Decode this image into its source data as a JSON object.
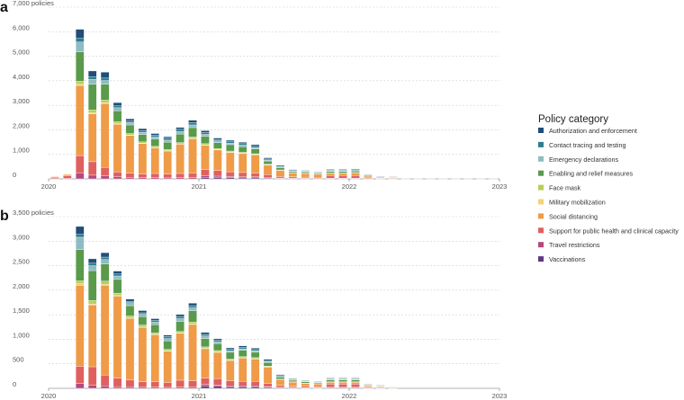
{
  "legend": {
    "title": "Policy category",
    "items": [
      {
        "label": "Authorization and enforcement",
        "color": "#1f4e79"
      },
      {
        "label": "Contact tracing and testing",
        "color": "#2c7f8f"
      },
      {
        "label": "Emergency declarations",
        "color": "#8fbcc4"
      },
      {
        "label": "Enabling and relief measures",
        "color": "#5a9a4b"
      },
      {
        "label": "Face mask",
        "color": "#b7cf5a"
      },
      {
        "label": "Military mobilization",
        "color": "#f2d27a"
      },
      {
        "label": "Social distancing",
        "color": "#ef9b47"
      },
      {
        "label": "Support for public health and clinical capacity",
        "color": "#e06060"
      },
      {
        "label": "Travel restrictions",
        "color": "#b5487f"
      },
      {
        "label": "Vaccinations",
        "color": "#5b3a80"
      }
    ]
  },
  "chart_data": [
    {
      "type": "bar",
      "panel": "a",
      "stacked": true,
      "ylim": [
        0,
        7000
      ],
      "yticks": [
        0,
        1000,
        2000,
        3000,
        4000,
        5000,
        6000,
        7000
      ],
      "ytick_labels": [
        "0",
        "1,000",
        "2,000",
        "3,000",
        "4,000",
        "5,000",
        "6,000",
        "7,000 policies"
      ],
      "x_start_month": "2020-01",
      "x_end_month": "2023-01",
      "x_tick_labels": [
        {
          "month": "2020-01",
          "label": "2020"
        },
        {
          "month": "2021-01",
          "label": "2021"
        },
        {
          "month": "2022-01",
          "label": "2022"
        },
        {
          "month": "2023-01",
          "label": "2023"
        }
      ],
      "months": [
        "2020-01",
        "2020-02",
        "2020-03",
        "2020-04",
        "2020-05",
        "2020-06",
        "2020-07",
        "2020-08",
        "2020-09",
        "2020-10",
        "2020-11",
        "2020-12",
        "2021-01",
        "2021-02",
        "2021-03",
        "2021-04",
        "2021-05",
        "2021-06",
        "2021-07",
        "2021-08",
        "2021-09",
        "2021-10",
        "2021-11",
        "2021-12",
        "2022-01",
        "2022-02",
        "2022-03",
        "2022-04",
        "2022-05",
        "2022-06",
        "2022-07",
        "2022-08",
        "2022-09",
        "2022-10",
        "2022-11",
        "2022-12"
      ],
      "series": [
        {
          "name": "Vaccinations",
          "values": [
            0,
            0,
            0,
            0,
            0,
            0,
            0,
            0,
            0,
            0,
            0,
            0,
            60,
            60,
            50,
            40,
            40,
            30,
            20,
            20,
            15,
            10,
            10,
            10,
            10,
            5,
            5,
            5,
            0,
            0,
            0,
            0,
            0,
            0,
            0,
            0
          ]
        },
        {
          "name": "Travel restrictions",
          "values": [
            10,
            20,
            250,
            150,
            120,
            80,
            60,
            50,
            50,
            40,
            50,
            50,
            70,
            50,
            40,
            40,
            40,
            25,
            15,
            15,
            10,
            10,
            20,
            20,
            20,
            5,
            5,
            5,
            0,
            0,
            0,
            0,
            0,
            0,
            0,
            0
          ]
        },
        {
          "name": "Support for public health and clinical capacity",
          "values": [
            50,
            100,
            700,
            550,
            350,
            200,
            170,
            150,
            170,
            150,
            170,
            190,
            250,
            230,
            200,
            180,
            160,
            120,
            60,
            50,
            45,
            40,
            110,
            110,
            110,
            30,
            20,
            10,
            5,
            5,
            5,
            5,
            5,
            5,
            5,
            5
          ]
        },
        {
          "name": "Social distancing",
          "values": [
            30,
            60,
            2850,
            1950,
            2600,
            1950,
            1550,
            1250,
            1050,
            950,
            1200,
            1400,
            1000,
            850,
            800,
            780,
            750,
            400,
            250,
            160,
            150,
            130,
            90,
            90,
            110,
            80,
            40,
            40,
            0,
            0,
            0,
            0,
            0,
            0,
            0,
            0
          ]
        },
        {
          "name": "Military mobilization",
          "values": [
            0,
            0,
            60,
            40,
            30,
            20,
            10,
            10,
            10,
            10,
            10,
            10,
            5,
            5,
            5,
            5,
            5,
            5,
            0,
            0,
            0,
            0,
            0,
            0,
            0,
            0,
            0,
            0,
            0,
            0,
            0,
            0,
            0,
            0,
            0,
            0
          ]
        },
        {
          "name": "Face mask",
          "values": [
            0,
            0,
            120,
            120,
            110,
            80,
            60,
            50,
            50,
            50,
            50,
            60,
            50,
            40,
            40,
            40,
            30,
            20,
            20,
            10,
            10,
            10,
            10,
            10,
            10,
            5,
            5,
            5,
            0,
            0,
            0,
            0,
            0,
            0,
            0,
            0
          ]
        },
        {
          "name": "Enabling and relief measures",
          "values": [
            0,
            0,
            1200,
            1050,
            650,
            450,
            350,
            300,
            300,
            300,
            350,
            380,
            300,
            240,
            260,
            230,
            200,
            130,
            90,
            50,
            50,
            40,
            60,
            60,
            60,
            30,
            20,
            10,
            0,
            0,
            0,
            0,
            0,
            0,
            0,
            0
          ]
        },
        {
          "name": "Emergency declarations",
          "values": [
            0,
            0,
            400,
            200,
            150,
            120,
            100,
            90,
            80,
            80,
            100,
            110,
            80,
            70,
            60,
            60,
            50,
            40,
            30,
            20,
            20,
            15,
            30,
            30,
            30,
            15,
            5,
            5,
            0,
            0,
            0,
            0,
            0,
            0,
            0,
            0
          ]
        },
        {
          "name": "Contact tracing and testing",
          "values": [
            0,
            0,
            150,
            100,
            100,
            80,
            60,
            60,
            70,
            80,
            90,
            90,
            70,
            60,
            60,
            60,
            50,
            40,
            30,
            20,
            20,
            15,
            25,
            25,
            25,
            10,
            5,
            5,
            0,
            0,
            0,
            0,
            0,
            0,
            0,
            0
          ]
        },
        {
          "name": "Authorization and enforcement",
          "values": [
            0,
            0,
            370,
            240,
            240,
            130,
            90,
            90,
            70,
            60,
            80,
            100,
            80,
            60,
            60,
            60,
            70,
            50,
            40,
            30,
            25,
            20,
            30,
            30,
            30,
            10,
            5,
            5,
            0,
            0,
            0,
            0,
            0,
            0,
            0,
            0
          ]
        }
      ]
    },
    {
      "type": "bar",
      "panel": "b",
      "stacked": true,
      "ylim": [
        0,
        3500
      ],
      "yticks": [
        0,
        500,
        1000,
        1500,
        2000,
        2500,
        3000,
        3500
      ],
      "ytick_labels": [
        "0",
        "500",
        "1,000",
        "1,500",
        "2,000",
        "2,500",
        "3,000",
        "3,500 policies"
      ],
      "x_start_month": "2020-01",
      "x_end_month": "2023-01",
      "x_tick_labels": [
        {
          "month": "2020-01",
          "label": "2020"
        },
        {
          "month": "2021-01",
          "label": "2021"
        },
        {
          "month": "2022-01",
          "label": "2022"
        },
        {
          "month": "2023-01",
          "label": "2023"
        }
      ],
      "months": [
        "2020-01",
        "2020-02",
        "2020-03",
        "2020-04",
        "2020-05",
        "2020-06",
        "2020-07",
        "2020-08",
        "2020-09",
        "2020-10",
        "2020-11",
        "2020-12",
        "2021-01",
        "2021-02",
        "2021-03",
        "2021-04",
        "2021-05",
        "2021-06",
        "2021-07",
        "2021-08",
        "2021-09",
        "2021-10",
        "2021-11",
        "2021-12",
        "2022-01",
        "2022-02",
        "2022-03",
        "2022-04",
        "2022-05",
        "2022-06",
        "2022-07",
        "2022-08",
        "2022-09",
        "2022-10",
        "2022-11",
        "2022-12"
      ],
      "series": [
        {
          "name": "Vaccinations",
          "values": [
            0,
            0,
            0,
            0,
            0,
            0,
            0,
            0,
            0,
            0,
            0,
            0,
            40,
            40,
            30,
            30,
            30,
            20,
            15,
            10,
            10,
            10,
            10,
            10,
            10,
            5,
            5,
            0,
            0,
            0,
            0,
            0,
            0,
            0,
            0,
            0
          ]
        },
        {
          "name": "Travel restrictions",
          "values": [
            0,
            0,
            100,
            60,
            50,
            30,
            30,
            25,
            25,
            20,
            25,
            25,
            40,
            25,
            20,
            20,
            20,
            15,
            10,
            10,
            5,
            5,
            15,
            15,
            15,
            5,
            5,
            0,
            0,
            0,
            0,
            0,
            0,
            0,
            0,
            0
          ]
        },
        {
          "name": "Support for public health and clinical capacity",
          "values": [
            0,
            0,
            350,
            380,
            220,
            180,
            140,
            110,
            110,
            100,
            140,
            130,
            130,
            130,
            100,
            90,
            90,
            60,
            35,
            25,
            25,
            20,
            60,
            60,
            60,
            15,
            10,
            5,
            0,
            0,
            0,
            0,
            0,
            0,
            0,
            0
          ]
        },
        {
          "name": "Social distancing",
          "values": [
            0,
            0,
            1650,
            1260,
            1830,
            1670,
            1260,
            1110,
            960,
            640,
            960,
            1150,
            600,
            540,
            420,
            480,
            460,
            340,
            120,
            80,
            60,
            55,
            40,
            40,
            40,
            30,
            20,
            15,
            0,
            0,
            0,
            0,
            0,
            0,
            0,
            0
          ]
        },
        {
          "name": "Military mobilization",
          "values": [
            0,
            0,
            30,
            20,
            15,
            10,
            5,
            5,
            5,
            5,
            5,
            5,
            5,
            5,
            5,
            5,
            5,
            5,
            0,
            0,
            0,
            0,
            0,
            0,
            0,
            0,
            0,
            0,
            0,
            0,
            0,
            0,
            0,
            0,
            0,
            0
          ]
        },
        {
          "name": "Face mask",
          "values": [
            0,
            0,
            60,
            70,
            70,
            50,
            40,
            40,
            30,
            30,
            30,
            40,
            30,
            30,
            20,
            20,
            20,
            15,
            10,
            10,
            5,
            5,
            10,
            10,
            10,
            5,
            5,
            0,
            0,
            0,
            0,
            0,
            0,
            0,
            0,
            0
          ]
        },
        {
          "name": "Enabling and relief measures",
          "values": [
            0,
            0,
            640,
            610,
            350,
            280,
            210,
            170,
            170,
            170,
            200,
            230,
            170,
            140,
            140,
            130,
            110,
            70,
            40,
            30,
            30,
            20,
            35,
            35,
            35,
            15,
            10,
            5,
            0,
            0,
            0,
            0,
            0,
            0,
            0,
            0
          ]
        },
        {
          "name": "Emergency declarations",
          "values": [
            0,
            0,
            250,
            100,
            90,
            70,
            60,
            50,
            50,
            50,
            60,
            60,
            50,
            40,
            30,
            30,
            30,
            20,
            15,
            10,
            10,
            10,
            15,
            15,
            15,
            5,
            5,
            0,
            0,
            0,
            0,
            0,
            0,
            0,
            0,
            0
          ]
        },
        {
          "name": "Contact tracing and testing",
          "values": [
            0,
            0,
            60,
            50,
            50,
            40,
            30,
            30,
            35,
            40,
            45,
            45,
            35,
            30,
            30,
            30,
            25,
            20,
            15,
            10,
            10,
            5,
            10,
            10,
            10,
            5,
            5,
            0,
            0,
            0,
            0,
            0,
            0,
            0,
            0,
            0
          ]
        },
        {
          "name": "Authorization and enforcement",
          "values": [
            0,
            0,
            160,
            90,
            90,
            60,
            45,
            45,
            35,
            30,
            40,
            50,
            40,
            30,
            30,
            30,
            30,
            25,
            20,
            15,
            10,
            10,
            15,
            15,
            15,
            5,
            5,
            0,
            0,
            0,
            0,
            0,
            0,
            0,
            0,
            0
          ]
        }
      ]
    }
  ]
}
